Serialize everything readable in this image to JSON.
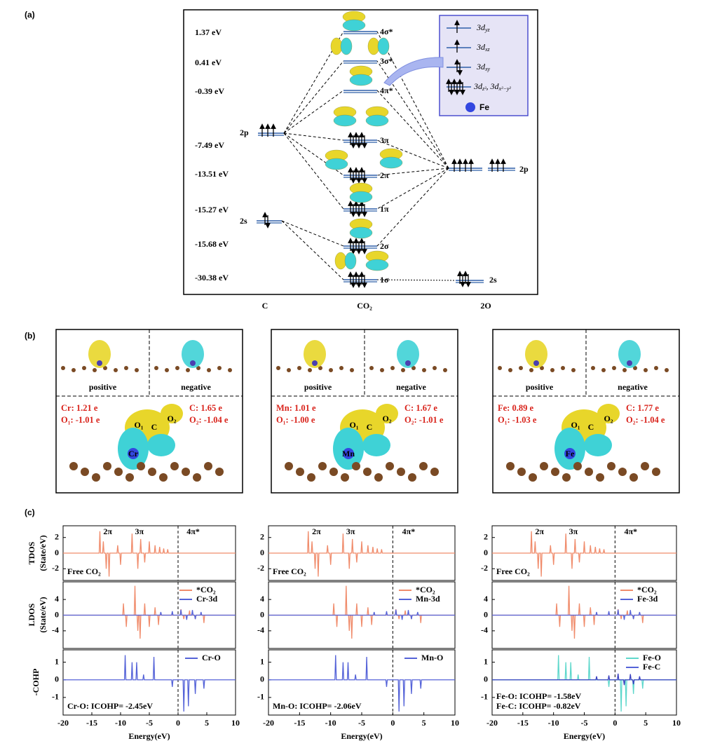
{
  "panel_a": {
    "label": "(a)",
    "energies": [
      "1.37 eV",
      "0.41 eV",
      "-0.39 eV",
      "-7.49 eV",
      "-13.51 eV",
      "-15.27 eV",
      "-15.68 eV",
      "-30.38 eV"
    ],
    "orbitals": [
      "4σ*",
      "3σ*",
      "4π*",
      "3π",
      "2π",
      "1π",
      "2σ",
      "1σ"
    ],
    "c_levels": [
      "2p",
      "2s"
    ],
    "o_levels": [
      "2p",
      "2s"
    ],
    "columns": [
      "C",
      "CO₂",
      "2O"
    ],
    "legend": {
      "items": [
        {
          "main": "3d",
          "sub": "yz"
        },
        {
          "main": "3d",
          "sub": "xz"
        },
        {
          "main": "3d",
          "sub": "xy"
        },
        {
          "main": "3d",
          "sub": "z²",
          "rest": ", 3d",
          "sub2": "x²−y²"
        }
      ],
      "atom": "Fe"
    }
  },
  "panel_b": {
    "label": "(b)",
    "frames": [
      {
        "top_labels": [
          "positive",
          "negative"
        ],
        "left": [
          "Cr: 1.21 e",
          "O₁: -1.01 e"
        ],
        "right": [
          "C: 1.65 e",
          "O₂: -1.04 e"
        ],
        "atoms": [
          "O₁",
          "C",
          "O₂",
          "Cr"
        ]
      },
      {
        "top_labels": [
          "positive",
          "negative"
        ],
        "left": [
          "Mn: 1.01 e",
          "O₁: -1.00 e"
        ],
        "right": [
          "C:  1.67 e",
          "O₂:  -1.01 e"
        ],
        "atoms": [
          "O₁",
          "C",
          "O₂",
          "Mn"
        ]
      },
      {
        "top_labels": [
          "positive",
          "negative"
        ],
        "left": [
          "Fe: 0.89 e",
          "O₁: -1.03 e"
        ],
        "right": [
          "C:  1.77 e",
          "O₂: -1.04 e"
        ],
        "atoms": [
          "O₁",
          "C",
          "O₂",
          "Fe"
        ]
      }
    ]
  },
  "panel_c": {
    "label": "(c)",
    "ylabels": [
      [
        "TDOS",
        "(State/eV)"
      ],
      [
        "LDOS",
        "(State/eV)"
      ],
      [
        "-COHP"
      ]
    ],
    "xlabel": "Energy(eV)",
    "xlim": [
      -20,
      10
    ],
    "xticks": [
      -20,
      -15,
      -10,
      -5,
      0,
      5,
      10
    ],
    "columns": [
      {
        "tdos": {
          "ylim": [
            -3.5,
            3.5
          ],
          "yticks": [
            2,
            0,
            -2
          ],
          "peaks": [
            "2π",
            "3π",
            "4π*"
          ],
          "note": "Free CO₂"
        },
        "ldos": {
          "ylim": [
            -8.5,
            8.5
          ],
          "yticks": [
            4,
            0,
            -4
          ],
          "legend": [
            "*CO₂",
            "Cr-3d"
          ]
        },
        "cohp": {
          "ylim": [
            -2,
            1.7
          ],
          "yticks": [
            1,
            0,
            -1
          ],
          "legend": [
            "Cr-O"
          ],
          "notes": [
            "Cr-O: ICOHP= -2.45eV"
          ]
        }
      },
      {
        "tdos": {
          "ylim": [
            -3.5,
            3.5
          ],
          "yticks": [
            2,
            0,
            -2
          ],
          "peaks": [
            "2π",
            "3π",
            "4π*"
          ],
          "note": "Free CO₂"
        },
        "ldos": {
          "ylim": [
            -8.5,
            8.5
          ],
          "yticks": [
            4,
            0,
            -4
          ],
          "legend": [
            "*CO₂",
            "Mn-3d"
          ]
        },
        "cohp": {
          "ylim": [
            -2,
            1.7
          ],
          "yticks": [
            1,
            0,
            -1
          ],
          "legend": [
            "Mn-O"
          ],
          "notes": [
            "Mn-O: ICOHP= -2.06eV"
          ]
        }
      },
      {
        "tdos": {
          "ylim": [
            -3.5,
            3.5
          ],
          "yticks": [
            2,
            0,
            -2
          ],
          "peaks": [
            "2π",
            "3π",
            "4π*"
          ],
          "note": "Free CO₂"
        },
        "ldos": {
          "ylim": [
            -8.5,
            8.5
          ],
          "yticks": [
            4,
            0,
            -4
          ],
          "legend": [
            "*CO₂",
            "Fe-3d"
          ]
        },
        "cohp": {
          "ylim": [
            -2,
            1.7
          ],
          "yticks": [
            1,
            0,
            -1
          ],
          "legend": [
            "Fe-O",
            "Fe-C"
          ],
          "notes": [
            "Fe-O: ICOHP= -1.58eV",
            "Fe-C: ICOHP= -0.82eV"
          ]
        }
      }
    ]
  }
}
